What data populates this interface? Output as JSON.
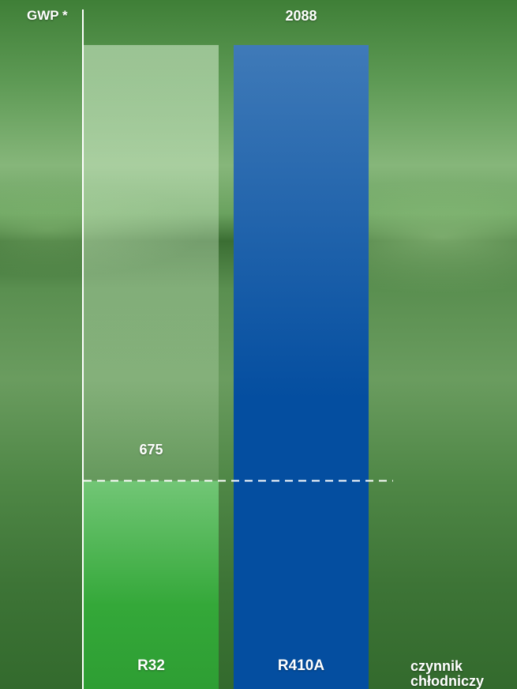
{
  "chart_data": {
    "type": "bar",
    "ylabel": "GWP *",
    "xlabel": "czynnik chłodniczy",
    "categories": [
      "R32",
      "R410A"
    ],
    "values": [
      675,
      2088
    ],
    "reference_line": {
      "value": 675,
      "style": "dashed"
    },
    "colors": {
      "R32": "#34a839",
      "R32_ghost": "#c8e6c0",
      "R410A": "#044ea0",
      "R410A_top": "#3f7ab8"
    },
    "grid": false,
    "legend": "none"
  }
}
